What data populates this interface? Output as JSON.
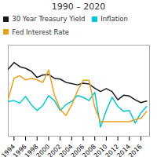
{
  "chart_data": {
    "type": "line",
    "title": "1990 – 2020",
    "x": [
      1993,
      1994,
      1995,
      1996,
      1997,
      1998,
      1999,
      2000,
      2001,
      2002,
      2003,
      2004,
      2005,
      2006,
      2007,
      2008,
      2009,
      2010,
      2011,
      2012,
      2013,
      2014,
      2015,
      2016,
      2017
    ],
    "series": [
      {
        "name": "30 Year Treasury Yield",
        "color": "#1a1a1a",
        "values": [
          6.6,
          7.4,
          6.9,
          6.7,
          6.35,
          5.6,
          5.9,
          5.95,
          5.5,
          5.4,
          5.0,
          4.85,
          4.7,
          4.9,
          4.8,
          4.3,
          3.9,
          4.25,
          3.9,
          2.9,
          3.45,
          3.35,
          2.9,
          2.55,
          2.75
        ]
      },
      {
        "name": "Inflation",
        "color": "#00c8d2",
        "values": [
          2.7,
          2.8,
          2.5,
          3.3,
          2.3,
          1.6,
          2.2,
          3.4,
          2.8,
          1.6,
          2.3,
          2.7,
          3.4,
          3.2,
          2.8,
          3.8,
          -0.4,
          1.6,
          3.2,
          2.1,
          1.5,
          1.6,
          0.1,
          1.3,
          2.1
        ]
      },
      {
        "name": "Fed Interest Rate",
        "color": "#e8a020",
        "values": [
          3.0,
          5.5,
          5.8,
          5.3,
          5.5,
          5.3,
          5.0,
          6.5,
          3.5,
          1.75,
          1.0,
          2.25,
          4.0,
          5.25,
          5.25,
          2.0,
          0.25,
          0.25,
          0.25,
          0.25,
          0.25,
          0.25,
          0.5,
          0.66,
          1.5
        ]
      }
    ],
    "xlim": [
      1993.0,
      2017.5
    ],
    "ylim": [
      -1.5,
      9.5
    ],
    "xticks": [
      1994,
      1996,
      1998,
      2000,
      2002,
      2004,
      2006,
      2008,
      2010,
      2012,
      2014,
      2016
    ],
    "tick_labels": "x",
    "grid": false,
    "legend": "upper left"
  }
}
